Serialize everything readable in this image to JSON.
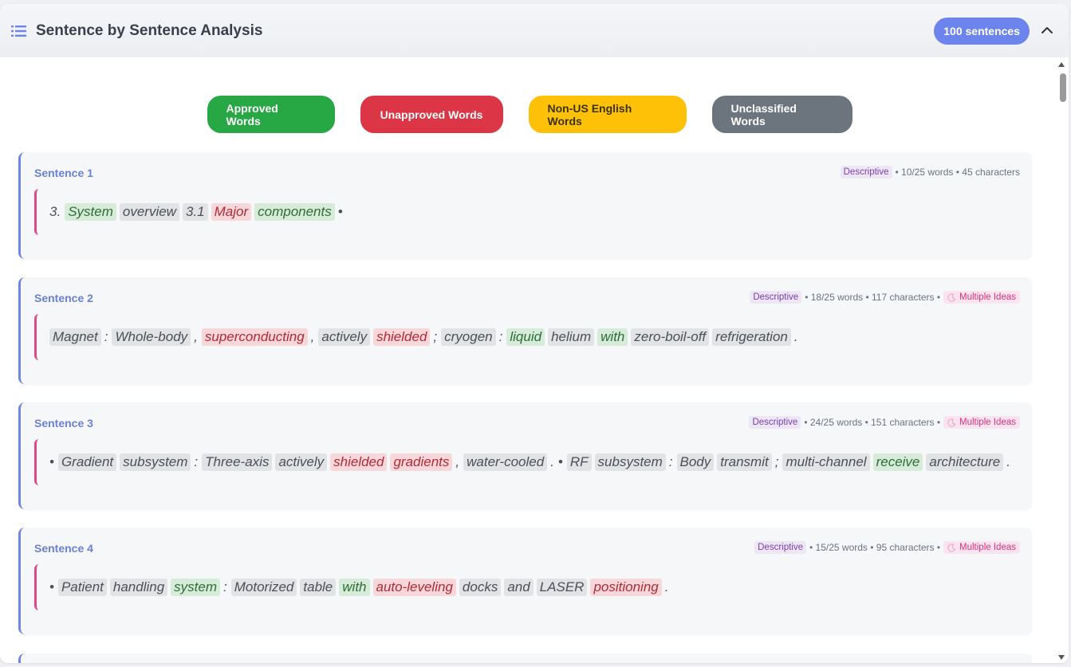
{
  "header": {
    "title": "Sentence by Sentence Analysis",
    "count_badge": "100 sentences"
  },
  "legend": {
    "approved": "Approved Words",
    "unapproved": "Unapproved Words",
    "non_us": "Non-US English Words",
    "unclassified": "Unclassified Words"
  },
  "colors": {
    "approved": "#28a745",
    "unapproved": "#dc3545",
    "non_us": "#ffc107",
    "unclassified": "#6c757d",
    "accent": "#6c84ec"
  },
  "sentences": [
    {
      "label": "Sentence 1",
      "type": "Descriptive",
      "stats": "• 10/25 words • 45 characters",
      "tokens": [
        {
          "t": "3.",
          "c": "p"
        },
        {
          "t": "System",
          "c": "a"
        },
        {
          "t": "overview",
          "c": "u"
        },
        {
          "t": "3.1",
          "c": "u"
        },
        {
          "t": "Major",
          "c": "r"
        },
        {
          "t": "components",
          "c": "a"
        },
        {
          "t": "•",
          "c": "p"
        }
      ]
    },
    {
      "label": "Sentence 2",
      "type": "Descriptive",
      "stats": "• 18/25 words • 117 characters •",
      "ideas": "Multiple Ideas",
      "tokens": [
        {
          "t": "Magnet",
          "c": "u"
        },
        {
          "t": ":",
          "c": "p"
        },
        {
          "t": "Whole-body",
          "c": "u"
        },
        {
          "t": ",",
          "c": "p"
        },
        {
          "t": "superconducting",
          "c": "r"
        },
        {
          "t": ",",
          "c": "p"
        },
        {
          "t": "actively",
          "c": "u"
        },
        {
          "t": "shielded",
          "c": "r"
        },
        {
          "t": ";",
          "c": "p"
        },
        {
          "t": "cryogen",
          "c": "u"
        },
        {
          "t": ":",
          "c": "p"
        },
        {
          "t": "liquid",
          "c": "a"
        },
        {
          "t": "helium",
          "c": "u"
        },
        {
          "t": "with",
          "c": "a"
        },
        {
          "t": "zero-boil-off",
          "c": "u"
        },
        {
          "t": "refrigeration",
          "c": "u"
        },
        {
          "t": ".",
          "c": "p"
        }
      ]
    },
    {
      "label": "Sentence 3",
      "type": "Descriptive",
      "stats": "• 24/25 words • 151 characters •",
      "ideas": "Multiple Ideas",
      "tokens": [
        {
          "t": "•",
          "c": "p"
        },
        {
          "t": "Gradient",
          "c": "u"
        },
        {
          "t": "subsystem",
          "c": "u"
        },
        {
          "t": ":",
          "c": "p"
        },
        {
          "t": "Three-axis",
          "c": "u"
        },
        {
          "t": "actively",
          "c": "u"
        },
        {
          "t": "shielded",
          "c": "r"
        },
        {
          "t": "gradients",
          "c": "r"
        },
        {
          "t": ",",
          "c": "p"
        },
        {
          "t": "water-cooled",
          "c": "u"
        },
        {
          "t": ".",
          "c": "p"
        },
        {
          "t": "•",
          "c": "p"
        },
        {
          "t": "RF",
          "c": "u"
        },
        {
          "t": "subsystem",
          "c": "u"
        },
        {
          "t": ":",
          "c": "p"
        },
        {
          "t": "Body",
          "c": "u"
        },
        {
          "t": "transmit",
          "c": "u"
        },
        {
          "t": ";",
          "c": "p"
        },
        {
          "t": "multi-channel",
          "c": "u"
        },
        {
          "t": "receive",
          "c": "a"
        },
        {
          "t": "architecture",
          "c": "u"
        },
        {
          "t": ".",
          "c": "p"
        }
      ]
    },
    {
      "label": "Sentence 4",
      "type": "Descriptive",
      "stats": "• 15/25 words • 95 characters •",
      "ideas": "Multiple Ideas",
      "tokens": [
        {
          "t": "•",
          "c": "p"
        },
        {
          "t": "Patient",
          "c": "u"
        },
        {
          "t": "handling",
          "c": "u"
        },
        {
          "t": "system",
          "c": "a"
        },
        {
          "t": ":",
          "c": "p"
        },
        {
          "t": "Motorized",
          "c": "u"
        },
        {
          "t": "table",
          "c": "u"
        },
        {
          "t": "with",
          "c": "a"
        },
        {
          "t": "auto-leveling",
          "c": "r"
        },
        {
          "t": "docks",
          "c": "u"
        },
        {
          "t": "and",
          "c": "u"
        },
        {
          "t": "LASER",
          "c": "u"
        },
        {
          "t": "positioning",
          "c": "r"
        },
        {
          "t": ".",
          "c": "p"
        }
      ]
    }
  ]
}
